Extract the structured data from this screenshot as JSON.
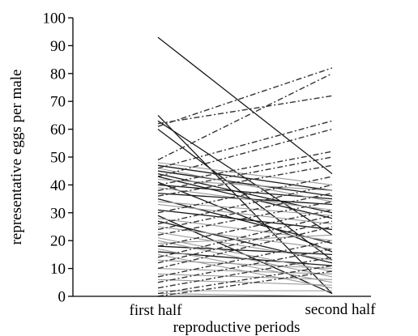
{
  "chart_data": {
    "type": "line",
    "xlabel": "reproductive periods",
    "ylabel": "representative eggs per male",
    "categories": [
      "first half",
      "second half"
    ],
    "ylim": [
      0,
      100
    ],
    "yticks": [
      0,
      10,
      20,
      30,
      40,
      50,
      60,
      70,
      80,
      90,
      100
    ],
    "grid": false,
    "legend": "none",
    "styles": {
      "dark": "#1a1a1a",
      "gray": "#9a9a9a",
      "dashed": "#333333"
    },
    "series": [
      {
        "style": "dark",
        "values": [
          93,
          44
        ]
      },
      {
        "style": "dark",
        "values": [
          65,
          1
        ]
      },
      {
        "style": "dark",
        "values": [
          63,
          22
        ]
      },
      {
        "style": "dark",
        "values": [
          60,
          13
        ]
      },
      {
        "style": "dark",
        "values": [
          47,
          38
        ]
      },
      {
        "style": "dark",
        "values": [
          45,
          36
        ]
      },
      {
        "style": "dark",
        "values": [
          44,
          30
        ]
      },
      {
        "style": "dark",
        "values": [
          43,
          28
        ]
      },
      {
        "style": "dark",
        "values": [
          41,
          16
        ]
      },
      {
        "style": "dark",
        "values": [
          40,
          35
        ]
      },
      {
        "style": "dark",
        "values": [
          37,
          33
        ]
      },
      {
        "style": "dark",
        "values": [
          35,
          19
        ]
      },
      {
        "style": "dark",
        "values": [
          31,
          24
        ]
      },
      {
        "style": "dark",
        "values": [
          29,
          1
        ]
      },
      {
        "style": "dark",
        "values": [
          27,
          12
        ]
      },
      {
        "style": "dark",
        "values": [
          18,
          15
        ]
      },
      {
        "style": "dark",
        "values": [
          16,
          11
        ]
      },
      {
        "style": "gray",
        "values": [
          48,
          40
        ]
      },
      {
        "style": "gray",
        "values": [
          46,
          34
        ]
      },
      {
        "style": "gray",
        "values": [
          42,
          38
        ]
      },
      {
        "style": "gray",
        "values": [
          39,
          31
        ]
      },
      {
        "style": "gray",
        "values": [
          34,
          29
        ]
      },
      {
        "style": "gray",
        "values": [
          33,
          26
        ]
      },
      {
        "style": "gray",
        "values": [
          28,
          20
        ]
      },
      {
        "style": "gray",
        "values": [
          25,
          17
        ]
      },
      {
        "style": "gray",
        "values": [
          23,
          13
        ]
      },
      {
        "style": "gray",
        "values": [
          21,
          9
        ]
      },
      {
        "style": "gray",
        "values": [
          20,
          7
        ]
      },
      {
        "style": "gray",
        "values": [
          19,
          22
        ]
      },
      {
        "style": "gray",
        "values": [
          17,
          5
        ]
      },
      {
        "style": "gray",
        "values": [
          15,
          3
        ]
      },
      {
        "style": "gray",
        "values": [
          13,
          10
        ]
      },
      {
        "style": "gray",
        "values": [
          10,
          8
        ]
      },
      {
        "style": "gray",
        "values": [
          8,
          6
        ]
      },
      {
        "style": "gray",
        "values": [
          6,
          4
        ]
      },
      {
        "style": "gray",
        "values": [
          2,
          2
        ]
      },
      {
        "style": "gray",
        "values": [
          1,
          0
        ]
      },
      {
        "style": "dashed",
        "values": [
          62,
          72
        ]
      },
      {
        "style": "dashed",
        "values": [
          61,
          82
        ]
      },
      {
        "style": "dashed",
        "values": [
          49,
          80
        ]
      },
      {
        "style": "dashed",
        "values": [
          46,
          63
        ]
      },
      {
        "style": "dashed",
        "values": [
          43,
          60
        ]
      },
      {
        "style": "dashed",
        "values": [
          40,
          52
        ]
      },
      {
        "style": "dashed",
        "values": [
          38,
          50
        ]
      },
      {
        "style": "dashed",
        "values": [
          36,
          47
        ]
      },
      {
        "style": "dashed",
        "values": [
          30,
          43
        ]
      },
      {
        "style": "dashed",
        "values": [
          26,
          40
        ]
      },
      {
        "style": "dashed",
        "values": [
          24,
          37
        ]
      },
      {
        "style": "dashed",
        "values": [
          22,
          34
        ]
      },
      {
        "style": "dashed",
        "values": [
          18,
          31
        ]
      },
      {
        "style": "dashed",
        "values": [
          14,
          29
        ]
      },
      {
        "style": "dashed",
        "values": [
          12,
          27
        ]
      },
      {
        "style": "dashed",
        "values": [
          10,
          25
        ]
      },
      {
        "style": "dashed",
        "values": [
          7,
          20
        ]
      },
      {
        "style": "dashed",
        "values": [
          5,
          17
        ]
      },
      {
        "style": "dashed",
        "values": [
          3,
          14
        ]
      },
      {
        "style": "dashed",
        "values": [
          1,
          11
        ]
      },
      {
        "style": "dashed",
        "values": [
          0,
          9
        ]
      }
    ]
  }
}
